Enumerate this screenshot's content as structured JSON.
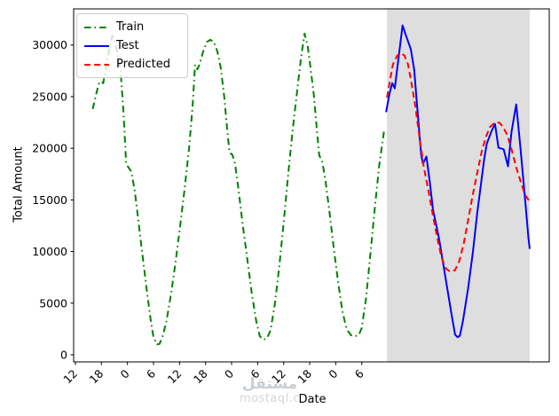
{
  "watermark": {
    "arabic": "مستقل",
    "latin": "mostaql.c"
  },
  "chart_data": {
    "type": "line",
    "title": "",
    "xlabel": "Date",
    "ylabel": "Total Amount",
    "xlim": [
      11.6,
      121.2
    ],
    "ylim": [
      -690,
      33500
    ],
    "grid": false,
    "x_ticks": {
      "positions": [
        12,
        18,
        24,
        30,
        36,
        42,
        48,
        54,
        60,
        66,
        72,
        78
      ],
      "labels": [
        "12",
        "18",
        "0",
        "6",
        "12",
        "18",
        "0",
        "6",
        "12",
        "18",
        "0",
        "6"
      ],
      "rotation": 45
    },
    "y_ticks": {
      "positions": [
        0,
        5000,
        10000,
        15000,
        20000,
        25000,
        30000
      ],
      "labels": [
        "0",
        "5000",
        "10000",
        "15000",
        "20000",
        "25000",
        "30000"
      ]
    },
    "shaded_region": {
      "x0": 83.8,
      "x1": 116.7,
      "color": "#dedede"
    },
    "axis_color": "#000000",
    "legend": {
      "position": "upper-left",
      "entries": [
        "Train",
        "Test",
        "Predicted"
      ]
    },
    "series": [
      {
        "name": "Train",
        "color": "#008000",
        "style": "dashdot",
        "points": [
          [
            16,
            23800
          ],
          [
            17,
            25600
          ],
          [
            17.5,
            26400
          ],
          [
            18,
            26450
          ],
          [
            18.4,
            26300
          ],
          [
            19,
            27600
          ],
          [
            19.8,
            29600
          ],
          [
            20.5,
            30900
          ],
          [
            21,
            30500
          ],
          [
            21.8,
            29000
          ],
          [
            22.4,
            27550
          ],
          [
            23,
            24000
          ],
          [
            23.7,
            18500
          ],
          [
            24.3,
            18100
          ],
          [
            24.9,
            17750
          ],
          [
            25.7,
            15800
          ],
          [
            26.5,
            13000
          ],
          [
            27.5,
            9500
          ],
          [
            28.6,
            5800
          ],
          [
            29.4,
            3200
          ],
          [
            30,
            1700
          ],
          [
            30.8,
            1000
          ],
          [
            31.4,
            1050
          ],
          [
            32.2,
            1900
          ],
          [
            33,
            3300
          ],
          [
            34.1,
            6000
          ],
          [
            35.1,
            9000
          ],
          [
            36.1,
            12300
          ],
          [
            37.1,
            15800
          ],
          [
            38.2,
            20000
          ],
          [
            39,
            24000
          ],
          [
            39.6,
            28100
          ],
          [
            40.1,
            27650
          ],
          [
            40.6,
            28100
          ],
          [
            41.4,
            29300
          ],
          [
            42.3,
            30300
          ],
          [
            43.1,
            30500
          ],
          [
            43.9,
            30300
          ],
          [
            44.7,
            29400
          ],
          [
            45.5,
            27800
          ],
          [
            46.3,
            25000
          ],
          [
            47,
            21800
          ],
          [
            47.5,
            19600
          ],
          [
            48.2,
            19350
          ],
          [
            48.8,
            18500
          ],
          [
            49.6,
            16000
          ],
          [
            50.6,
            12500
          ],
          [
            51.7,
            9000
          ],
          [
            52.7,
            5800
          ],
          [
            53.7,
            3200
          ],
          [
            54.5,
            1800
          ],
          [
            55.3,
            1450
          ],
          [
            56.2,
            1600
          ],
          [
            57,
            2400
          ],
          [
            58,
            5000
          ],
          [
            59,
            8600
          ],
          [
            60,
            12800
          ],
          [
            61,
            17300
          ],
          [
            62,
            21500
          ],
          [
            63,
            25200
          ],
          [
            64,
            28800
          ],
          [
            64.8,
            31100
          ],
          [
            65.5,
            30000
          ],
          [
            66.2,
            27800
          ],
          [
            67,
            25000
          ],
          [
            67.6,
            22000
          ],
          [
            68.2,
            19300
          ],
          [
            68.9,
            18700
          ],
          [
            69.6,
            17000
          ],
          [
            70.5,
            14000
          ],
          [
            71.5,
            10500
          ],
          [
            72.5,
            7200
          ],
          [
            73.5,
            4300
          ],
          [
            74.5,
            2500
          ],
          [
            75.5,
            1900
          ],
          [
            76.5,
            1800
          ],
          [
            77.3,
            1900
          ],
          [
            78,
            2600
          ],
          [
            79,
            5500
          ],
          [
            80,
            9800
          ],
          [
            81,
            14200
          ],
          [
            82,
            18300
          ],
          [
            83.2,
            21900
          ]
        ]
      },
      {
        "name": "Test",
        "color": "#0000ff",
        "style": "solid",
        "points": [
          [
            83.6,
            23500
          ],
          [
            84.4,
            25300
          ],
          [
            85,
            26300
          ],
          [
            85.6,
            25800
          ],
          [
            86.4,
            28500
          ],
          [
            87,
            30500
          ],
          [
            87.4,
            31900
          ],
          [
            88.2,
            30900
          ],
          [
            89.3,
            29600
          ],
          [
            90.1,
            27550
          ],
          [
            90.5,
            25350
          ],
          [
            91.1,
            22350
          ],
          [
            91.4,
            20750
          ],
          [
            91.7,
            19350
          ],
          [
            92.1,
            18500
          ],
          [
            92.9,
            19200
          ],
          [
            93.7,
            16650
          ],
          [
            94.4,
            14100
          ],
          [
            95.8,
            11250
          ],
          [
            96.8,
            8700
          ],
          [
            97.8,
            6150
          ],
          [
            98.8,
            3600
          ],
          [
            99.5,
            1950
          ],
          [
            100.1,
            1700
          ],
          [
            100.6,
            1850
          ],
          [
            101.3,
            3250
          ],
          [
            102.5,
            6400
          ],
          [
            103.6,
            9900
          ],
          [
            104.6,
            13700
          ],
          [
            105.2,
            15700
          ],
          [
            106.2,
            18900
          ],
          [
            106.8,
            20450
          ],
          [
            108,
            21750
          ],
          [
            108.7,
            22350
          ],
          [
            109.5,
            20050
          ],
          [
            110.7,
            19900
          ],
          [
            111.7,
            18250
          ],
          [
            112.5,
            21600
          ],
          [
            113.6,
            24250
          ],
          [
            114.6,
            19900
          ],
          [
            115.2,
            17050
          ],
          [
            115.8,
            14250
          ],
          [
            116.4,
            11350
          ],
          [
            116.7,
            10250
          ]
        ]
      },
      {
        "name": "Predicted",
        "color": "#ff0000",
        "style": "dashed",
        "points": [
          [
            83.8,
            24900
          ],
          [
            84.6,
            26800
          ],
          [
            85.2,
            28150
          ],
          [
            86.2,
            29000
          ],
          [
            87,
            29200
          ],
          [
            87.8,
            29000
          ],
          [
            88.6,
            28200
          ],
          [
            89.3,
            26700
          ],
          [
            90.3,
            24150
          ],
          [
            91.3,
            21050
          ],
          [
            92.3,
            18150
          ],
          [
            93.3,
            16000
          ],
          [
            94.4,
            13500
          ],
          [
            95.4,
            11300
          ],
          [
            96.4,
            9400
          ],
          [
            97.4,
            8350
          ],
          [
            98.4,
            8050
          ],
          [
            99.5,
            8200
          ],
          [
            100.5,
            9100
          ],
          [
            101.5,
            10800
          ],
          [
            102.5,
            13000
          ],
          [
            103.5,
            15300
          ],
          [
            104.6,
            17600
          ],
          [
            105.6,
            19600
          ],
          [
            106.6,
            21100
          ],
          [
            107.6,
            22100
          ],
          [
            108.7,
            22500
          ],
          [
            109.7,
            22480
          ],
          [
            110.5,
            22100
          ],
          [
            111.5,
            21300
          ],
          [
            112.5,
            19900
          ],
          [
            113.6,
            18150
          ],
          [
            114.6,
            16800
          ],
          [
            115.6,
            15500
          ],
          [
            116.5,
            14950
          ]
        ]
      }
    ]
  }
}
